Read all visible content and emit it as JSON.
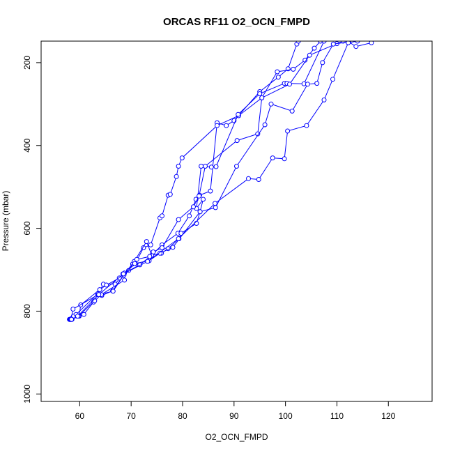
{
  "chart_data": {
    "type": "line",
    "title": "ORCAS RF11 O2_OCN_FMPD",
    "xlabel": "O2_OCN_FMPD",
    "ylabel": "Pressure (mbar)",
    "xlim": [
      52.5,
      128.5
    ],
    "ylim": [
      1018,
      148
    ],
    "y_reversed": true,
    "x_ticks": [
      60,
      70,
      80,
      90,
      100,
      110,
      120
    ],
    "y_ticks": [
      200,
      400,
      600,
      800,
      1000
    ],
    "grid": false,
    "marker": "open-circle",
    "color": "#0000ff",
    "series": [
      {
        "points": [
          [
            58.0,
            820
          ],
          [
            58.5,
            817
          ],
          [
            59.5,
            812
          ],
          [
            60.8,
            808
          ],
          [
            62.7,
            778
          ],
          [
            64.6,
            735
          ],
          [
            66.9,
            735
          ],
          [
            68.4,
            710
          ],
          [
            71.7,
            688
          ],
          [
            74.0,
            665
          ],
          [
            76.0,
            640
          ],
          [
            79.1,
            612
          ],
          [
            81.3,
            570
          ],
          [
            82.6,
            530
          ],
          [
            83.3,
            520
          ],
          [
            85.4,
            510
          ],
          [
            86.7,
            345
          ],
          [
            88.5,
            352
          ],
          [
            90.0,
            340
          ],
          [
            95.0,
            270
          ],
          [
            98.6,
            235
          ],
          [
            100.5,
            215
          ],
          [
            102.2,
            155
          ],
          [
            102.5,
            148
          ]
        ]
      },
      {
        "points": [
          [
            58.1,
            820
          ],
          [
            59.9,
            812
          ],
          [
            60.2,
            785
          ],
          [
            63.9,
            748
          ],
          [
            65.2,
            737
          ],
          [
            67.7,
            720
          ],
          [
            68.7,
            708
          ],
          [
            70.8,
            685
          ],
          [
            72.4,
            647
          ],
          [
            73.8,
            640
          ],
          [
            75.6,
            575
          ],
          [
            76.0,
            570
          ],
          [
            77.2,
            520
          ],
          [
            77.6,
            518
          ],
          [
            78.8,
            475
          ],
          [
            79.2,
            450
          ],
          [
            79.9,
            430
          ],
          [
            86.7,
            352
          ],
          [
            90.9,
            328
          ],
          [
            95.4,
            285
          ],
          [
            98.4,
            222
          ],
          [
            101.5,
            216
          ],
          [
            103.8,
            194
          ],
          [
            105.6,
            165
          ],
          [
            106.8,
            148
          ]
        ]
      },
      {
        "points": [
          [
            58.2,
            820
          ],
          [
            58.8,
            812
          ],
          [
            59.3,
            808
          ],
          [
            63.5,
            758
          ],
          [
            64.3,
            762
          ],
          [
            66.4,
            751
          ],
          [
            68.6,
            712
          ],
          [
            69.5,
            702
          ],
          [
            70.3,
            686
          ],
          [
            73.0,
            632
          ],
          [
            74.0,
            665
          ],
          [
            75.9,
            660
          ],
          [
            77.2,
            649
          ],
          [
            79.3,
            625
          ],
          [
            79.7,
            612
          ],
          [
            82.7,
            588
          ],
          [
            83.4,
            560
          ],
          [
            84.0,
            530
          ],
          [
            82.7,
            552
          ],
          [
            83.6,
            450
          ],
          [
            85.6,
            452
          ],
          [
            86.5,
            451
          ],
          [
            90.8,
            325
          ],
          [
            95.0,
            275
          ],
          [
            99.8,
            250
          ],
          [
            100.3,
            250
          ],
          [
            103.6,
            251
          ],
          [
            107.5,
            148
          ]
        ]
      },
      {
        "points": [
          [
            58.3,
            820
          ],
          [
            58.7,
            795
          ],
          [
            63.6,
            760
          ],
          [
            66.5,
            752
          ],
          [
            68.6,
            712
          ],
          [
            70.6,
            680
          ],
          [
            71.1,
            675
          ],
          [
            73.6,
            668
          ],
          [
            74.3,
            657
          ],
          [
            76.0,
            647
          ],
          [
            79.2,
            579
          ],
          [
            82.1,
            548
          ],
          [
            83.2,
            522
          ],
          [
            84.4,
            450
          ],
          [
            90.6,
            388
          ],
          [
            94.6,
            372
          ],
          [
            95.4,
            285
          ],
          [
            100.8,
            252
          ],
          [
            104.7,
            182
          ],
          [
            110.0,
            154
          ],
          [
            111.2,
            148
          ]
        ]
      },
      {
        "points": [
          [
            58.5,
            820
          ],
          [
            59.8,
            812
          ],
          [
            62.9,
            775
          ],
          [
            64.2,
            760
          ],
          [
            68.7,
            725
          ],
          [
            68.6,
            713
          ],
          [
            70.7,
            685
          ],
          [
            73.5,
            678
          ],
          [
            75.6,
            660
          ],
          [
            78.1,
            646
          ],
          [
            83.4,
            560
          ],
          [
            86.4,
            550
          ],
          [
            90.5,
            450
          ],
          [
            96.0,
            350
          ],
          [
            97.2,
            300
          ],
          [
            101.3,
            317
          ],
          [
            104.3,
            252
          ],
          [
            106.1,
            250
          ],
          [
            107.2,
            200
          ],
          [
            109.3,
            155
          ],
          [
            112.3,
            150
          ],
          [
            113.7,
            161
          ],
          [
            116.7,
            152
          ]
        ]
      },
      {
        "points": [
          [
            58.4,
            820
          ],
          [
            59.6,
            812
          ],
          [
            63.7,
            760
          ],
          [
            68.5,
            710
          ],
          [
            73.2,
            680
          ],
          [
            79.2,
            625
          ],
          [
            86.3,
            540
          ],
          [
            92.8,
            480
          ],
          [
            94.8,
            482
          ],
          [
            97.5,
            430
          ],
          [
            99.8,
            432
          ],
          [
            100.4,
            365
          ],
          [
            104.1,
            352
          ],
          [
            107.5,
            290
          ],
          [
            109.2,
            240
          ],
          [
            112.2,
            152
          ],
          [
            114.0,
            148
          ]
        ]
      }
    ]
  }
}
